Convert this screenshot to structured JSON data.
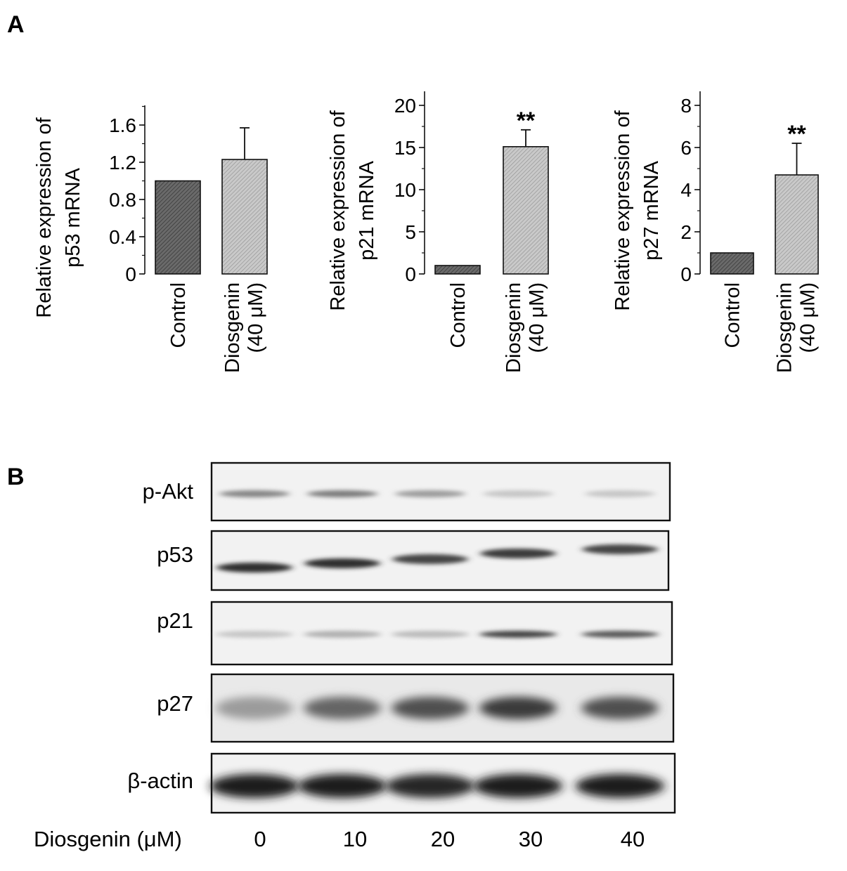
{
  "panel_a_label": "A",
  "panel_b_label": "B",
  "chart_data": [
    {
      "type": "bar",
      "ylabel_line1": "Relative expression of",
      "ylabel_line2": "p53 mRNA",
      "categories": [
        {
          "line1": "Control",
          "line2": ""
        },
        {
          "line1": "Diosgenin",
          "line2": "(40 μM)"
        }
      ],
      "values": [
        1.0,
        1.23
      ],
      "errors": [
        0,
        0.34
      ],
      "significance": [
        "",
        ""
      ],
      "ylim": [
        0,
        1.8
      ],
      "yticks": [
        0,
        0.4,
        0.8,
        1.2,
        1.6
      ],
      "ytick_labels": [
        "0",
        "0.4",
        "0.8",
        "1.2",
        "1.6"
      ],
      "minor_step": 0.2,
      "bar_colors": [
        "#595959",
        "#bdbdbd"
      ]
    },
    {
      "type": "bar",
      "ylabel_line1": "Relative expression of",
      "ylabel_line2": "p21 mRNA",
      "categories": [
        {
          "line1": "Control",
          "line2": ""
        },
        {
          "line1": "Diosgenin",
          "line2": "(40 μM)"
        }
      ],
      "values": [
        1.0,
        15.1
      ],
      "errors": [
        0,
        2.0
      ],
      "significance": [
        "",
        "**"
      ],
      "ylim": [
        0,
        20
      ],
      "yticks": [
        0,
        5,
        10,
        15,
        20
      ],
      "ytick_labels": [
        "0",
        "5",
        "10",
        "15",
        "20"
      ],
      "minor_step": 2.5,
      "bar_colors": [
        "#595959",
        "#bdbdbd"
      ]
    },
    {
      "type": "bar",
      "ylabel_line1": "Relative expression of",
      "ylabel_line2": "p27 mRNA",
      "categories": [
        {
          "line1": "Control",
          "line2": ""
        },
        {
          "line1": "Diosgenin",
          "line2": "(40 μM)"
        }
      ],
      "values": [
        1.0,
        4.7
      ],
      "errors": [
        0,
        1.5
      ],
      "significance": [
        "",
        "**"
      ],
      "ylim": [
        0,
        8
      ],
      "yticks": [
        0,
        2,
        4,
        6,
        8
      ],
      "ytick_labels": [
        "0",
        "2",
        "4",
        "6",
        "8"
      ],
      "minor_step": 1,
      "bar_colors": [
        "#595959",
        "#bdbdbd"
      ]
    }
  ],
  "blot": {
    "rows": [
      {
        "label": "p-Akt",
        "intensities": [
          0.45,
          0.5,
          0.35,
          0.15,
          0.15
        ]
      },
      {
        "label": "p53",
        "intensities": [
          0.85,
          0.85,
          0.75,
          0.8,
          0.75
        ]
      },
      {
        "label": "p21",
        "intensities": [
          0.15,
          0.25,
          0.2,
          0.75,
          0.65
        ]
      },
      {
        "label": "p27",
        "intensities": [
          0.35,
          0.6,
          0.7,
          0.8,
          0.7
        ]
      },
      {
        "label": "β-actin",
        "intensities": [
          0.95,
          0.95,
          0.9,
          0.95,
          0.95
        ]
      }
    ],
    "dose_title": "Diosgenin (μM)",
    "doses": [
      "0",
      "10",
      "20",
      "30",
      "40"
    ]
  }
}
